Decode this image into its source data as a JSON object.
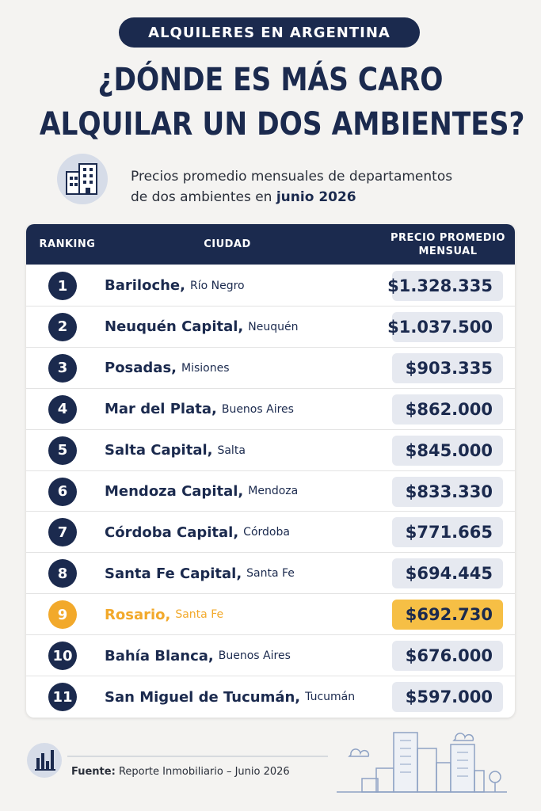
{
  "header": {
    "badge": "ALQUILERES EN ARGENTINA",
    "title_line1": "¿DÓNDE ES MÁS CARO",
    "title_line2": "ALQUILAR UN DOS AMBIENTES?"
  },
  "subtitle": {
    "line1": "Precios promedio mensuales de departamentos",
    "line2": "de dos ambientes en",
    "emphasis": "junio 2026"
  },
  "table": {
    "columns": [
      "RANKING",
      "CIUDAD",
      "PRECIO PROMEDIO MENSUAL"
    ],
    "rows": [
      {
        "rank": 1,
        "city": "Bariloche,",
        "province": "Río Negro",
        "price": "$1.328.335"
      },
      {
        "rank": 2,
        "city": "Neuquén Capital,",
        "province": "Neuquén",
        "price": "$1.037.500"
      },
      {
        "rank": 3,
        "city": "Posadas,",
        "province": "Misiones",
        "price": "$903.335"
      },
      {
        "rank": 4,
        "city": "Mar del Plata,",
        "province": "Buenos Aires",
        "price": "$862.000"
      },
      {
        "rank": 5,
        "city": "Salta Capital,",
        "province": "Salta",
        "price": "$845.000"
      },
      {
        "rank": 6,
        "city": "Mendoza Capital,",
        "province": "Mendoza",
        "price": "$833.330"
      },
      {
        "rank": 7,
        "city": "Córdoba Capital,",
        "province": "Córdoba",
        "price": "$771.665"
      },
      {
        "rank": 8,
        "city": "Santa Fe Capital,",
        "province": "Santa Fe",
        "price": "$694.445"
      },
      {
        "rank": 9,
        "city": "Rosario,",
        "province": "Santa Fe",
        "price": "$692.730",
        "highlight": true
      },
      {
        "rank": 10,
        "city": "Bahía Blanca,",
        "province": "Buenos Aires",
        "price": "$676.000"
      },
      {
        "rank": 11,
        "city": "San Miguel de Tucumán,",
        "province": "Tucumán",
        "price": "$597.000"
      }
    ]
  },
  "footer": {
    "label": "Fuente:",
    "source": "Reporte Inmobiliario – Junio 2026"
  }
}
